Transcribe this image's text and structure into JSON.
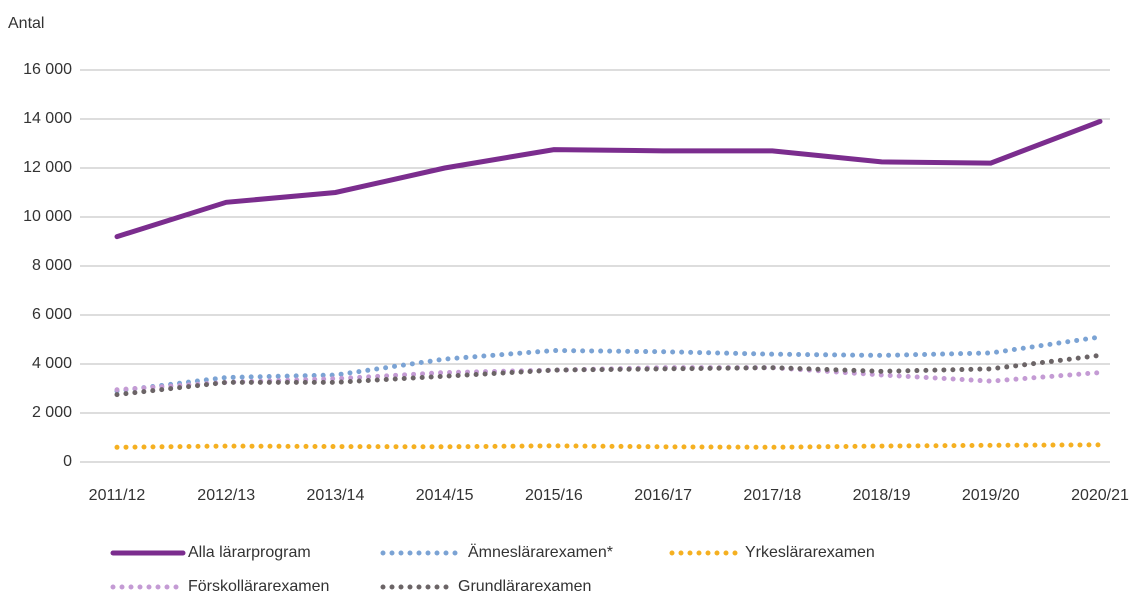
{
  "chart_data": {
    "type": "line",
    "y_axis_label": "Antal",
    "categories": [
      "2011/12",
      "2012/13",
      "2013/14",
      "2014/15",
      "2015/16",
      "2016/17",
      "2017/18",
      "2018/19",
      "2019/20",
      "2020/21"
    ],
    "series": [
      {
        "name": "Alla lärarprogram",
        "color": "#7b2d8e",
        "style": "solid",
        "values": [
          9200,
          10600,
          11000,
          12000,
          12750,
          12700,
          12700,
          12250,
          12200,
          13900
        ]
      },
      {
        "name": "Ämneslärarexamen*",
        "color": "#7ba3d4",
        "style": "dotted",
        "values": [
          2900,
          3450,
          3550,
          4200,
          4550,
          4500,
          4400,
          4350,
          4450,
          5100
        ]
      },
      {
        "name": "Yrkeslärarexamen",
        "color": "#f5b021",
        "style": "dotted",
        "values": [
          600,
          650,
          630,
          620,
          660,
          620,
          600,
          650,
          680,
          700
        ]
      },
      {
        "name": "Förskollärarexamen",
        "color": "#c49bd4",
        "style": "dotted",
        "values": [
          2950,
          3250,
          3400,
          3650,
          3750,
          3850,
          3850,
          3550,
          3300,
          3650
        ]
      },
      {
        "name": "Grundlärarexamen",
        "color": "#6b6466",
        "style": "dotted",
        "values": [
          2750,
          3250,
          3250,
          3500,
          3750,
          3800,
          3850,
          3700,
          3800,
          4350
        ]
      }
    ],
    "ylim": [
      0,
      16000
    ],
    "yticks": [
      0,
      {
        "value": 2000,
        "label": "2 000"
      },
      {
        "value": 4000,
        "label": "4 000"
      },
      {
        "value": 6000,
        "label": "6 000"
      },
      {
        "value": 8000,
        "label": "8 000"
      },
      {
        "value": 10000,
        "label": "10 000"
      },
      {
        "value": 12000,
        "label": "12 000"
      },
      {
        "value": 14000,
        "label": "14 000"
      },
      {
        "value": 16000,
        "label": "16 000"
      }
    ],
    "grid": true
  }
}
